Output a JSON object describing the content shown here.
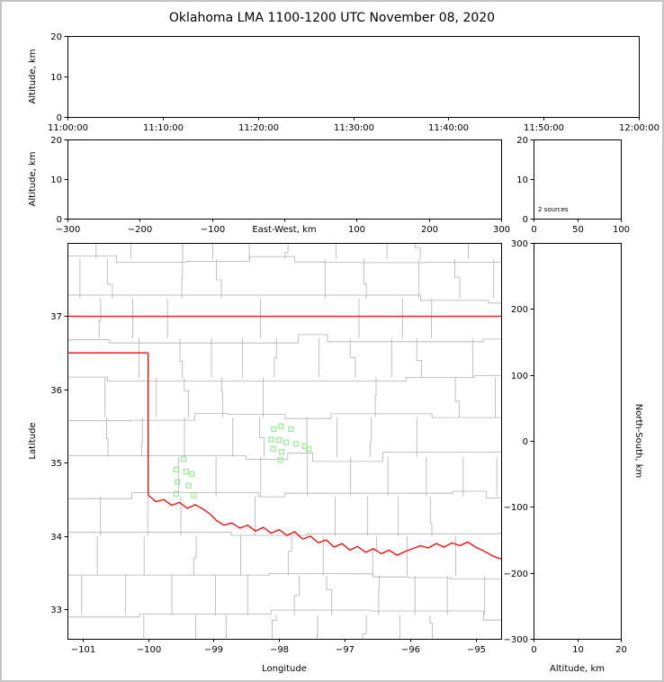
{
  "title": "Oklahoma LMA 1100-1200 UTC November 08, 2020",
  "colors": {
    "background": "#ffffff",
    "figure_border": "#c4c4c4",
    "axis_line": "#000000",
    "county_line": "#b0b0b0",
    "state_border": "#ff0000",
    "source_marker": "#90ee90"
  },
  "chart_data": [
    {
      "id": "time_height",
      "name": "time-altitude-panel",
      "type": "scatter",
      "xlabel": "",
      "ylabel": "Altitude, km",
      "xlim": [
        0,
        3600
      ],
      "xticks": [
        0,
        600,
        1200,
        1800,
        2400,
        3000,
        3600
      ],
      "xtick_labels": [
        "11:00:00",
        "11:10:00",
        "11:20:00",
        "11:30:00",
        "11:40:00",
        "11:50:00",
        "12:00:00"
      ],
      "ylim": [
        0,
        20
      ],
      "yticks": [
        0,
        10,
        20
      ],
      "grid": false,
      "points": []
    },
    {
      "id": "ew_height",
      "name": "east-west-altitude-panel",
      "type": "scatter",
      "xlabel": "East-West, km",
      "xlabel_inline": true,
      "ylabel": "Altitude, km",
      "xlim": [
        -300,
        300
      ],
      "xticks": [
        -300,
        -200,
        -100,
        0,
        100,
        200,
        300
      ],
      "xtick_labels": [
        "-300",
        "-200",
        "-100",
        "",
        "100",
        "200",
        "300"
      ],
      "ylim": [
        0,
        20
      ],
      "yticks": [
        0,
        10,
        20
      ],
      "grid": false,
      "points": []
    },
    {
      "id": "alt_hist",
      "name": "altitude-histogram-panel",
      "type": "line",
      "xlabel": "",
      "ylabel": "",
      "xlim": [
        0,
        100
      ],
      "xticks": [
        0,
        50,
        100
      ],
      "ylim": [
        0,
        20
      ],
      "yticks": [
        0,
        10,
        20
      ],
      "annotation": "2 sources",
      "grid": false,
      "points": []
    },
    {
      "id": "plan_view",
      "name": "plan-view-map-panel",
      "type": "scatter",
      "xlabel": "Longitude",
      "ylabel": "Latitude",
      "xlim": [
        -101.23,
        -94.61
      ],
      "xticks": [
        -101,
        -100,
        -99,
        -98,
        -97,
        -96,
        -95
      ],
      "ylim": [
        32.6,
        38.0
      ],
      "yticks": [
        33,
        34,
        35,
        36,
        37
      ],
      "marker": "open-square",
      "grid": false,
      "points": [
        [
          -99.46,
          35.05
        ],
        [
          -99.57,
          34.91
        ],
        [
          -99.42,
          34.88
        ],
        [
          -99.33,
          34.85
        ],
        [
          -99.55,
          34.74
        ],
        [
          -99.38,
          34.69
        ],
        [
          -99.57,
          34.58
        ],
        [
          -99.3,
          34.56
        ],
        [
          -98.08,
          35.46
        ],
        [
          -97.97,
          35.5
        ],
        [
          -97.82,
          35.46
        ],
        [
          -98.12,
          35.32
        ],
        [
          -98.0,
          35.31
        ],
        [
          -97.89,
          35.28
        ],
        [
          -97.74,
          35.26
        ],
        [
          -98.09,
          35.19
        ],
        [
          -97.96,
          35.15
        ],
        [
          -97.61,
          35.23
        ],
        [
          -97.55,
          35.19
        ],
        [
          -97.98,
          35.04
        ]
      ]
    },
    {
      "id": "ns_height",
      "name": "north-south-altitude-panel",
      "type": "scatter",
      "xlabel": "Altitude, km",
      "ylabel": "North-South, km",
      "ylabel_side": "right",
      "xlim": [
        0,
        20
      ],
      "xticks": [
        0,
        10,
        20
      ],
      "ylim": [
        -300,
        300
      ],
      "yticks": [
        -300,
        -200,
        -100,
        0,
        100,
        200,
        300
      ],
      "grid": false,
      "points": []
    }
  ],
  "map": {
    "county_grid": {
      "seed": 20201108,
      "lat_spacing": 0.54,
      "lon_spacing": 0.62,
      "jog_probability": 0.35,
      "skip_probability": 0.15
    },
    "state_borders": [
      {
        "name": "oklahoma-kansas-north-border",
        "points": [
          [
            -101.23,
            37.0
          ],
          [
            -94.61,
            37.0
          ]
        ]
      },
      {
        "name": "panhandle-south-border",
        "points": [
          [
            -101.23,
            36.5
          ],
          [
            -100.0,
            36.5
          ]
        ]
      },
      {
        "name": "hundredth-meridian-border",
        "points": [
          [
            -100.0,
            36.5
          ],
          [
            -100.0,
            34.56
          ]
        ]
      },
      {
        "name": "red-river-border",
        "points": [
          [
            -100.0,
            34.56
          ],
          [
            -99.88,
            34.47
          ],
          [
            -99.76,
            34.5
          ],
          [
            -99.64,
            34.42
          ],
          [
            -99.52,
            34.46
          ],
          [
            -99.4,
            34.38
          ],
          [
            -99.28,
            34.43
          ],
          [
            -99.16,
            34.37
          ],
          [
            -99.05,
            34.3
          ],
          [
            -98.95,
            34.21
          ],
          [
            -98.84,
            34.15
          ],
          [
            -98.72,
            34.18
          ],
          [
            -98.6,
            34.11
          ],
          [
            -98.48,
            34.15
          ],
          [
            -98.36,
            34.07
          ],
          [
            -98.24,
            34.12
          ],
          [
            -98.12,
            34.04
          ],
          [
            -98.0,
            34.09
          ],
          [
            -97.88,
            34.01
          ],
          [
            -97.76,
            34.06
          ],
          [
            -97.64,
            33.96
          ],
          [
            -97.52,
            34.0
          ],
          [
            -97.4,
            33.91
          ],
          [
            -97.28,
            33.95
          ],
          [
            -97.16,
            33.85
          ],
          [
            -97.04,
            33.9
          ],
          [
            -96.92,
            33.81
          ],
          [
            -96.8,
            33.86
          ],
          [
            -96.68,
            33.78
          ],
          [
            -96.56,
            33.83
          ],
          [
            -96.44,
            33.76
          ],
          [
            -96.32,
            33.81
          ],
          [
            -96.2,
            33.74
          ],
          [
            -96.08,
            33.79
          ],
          [
            -95.96,
            33.83
          ],
          [
            -95.84,
            33.87
          ],
          [
            -95.72,
            33.84
          ],
          [
            -95.6,
            33.9
          ],
          [
            -95.48,
            33.85
          ],
          [
            -95.36,
            33.91
          ],
          [
            -95.24,
            33.87
          ],
          [
            -95.12,
            33.92
          ],
          [
            -95.0,
            33.85
          ],
          [
            -94.88,
            33.8
          ],
          [
            -94.76,
            33.74
          ],
          [
            -94.68,
            33.71
          ],
          [
            -94.61,
            33.69
          ]
        ]
      }
    ]
  }
}
